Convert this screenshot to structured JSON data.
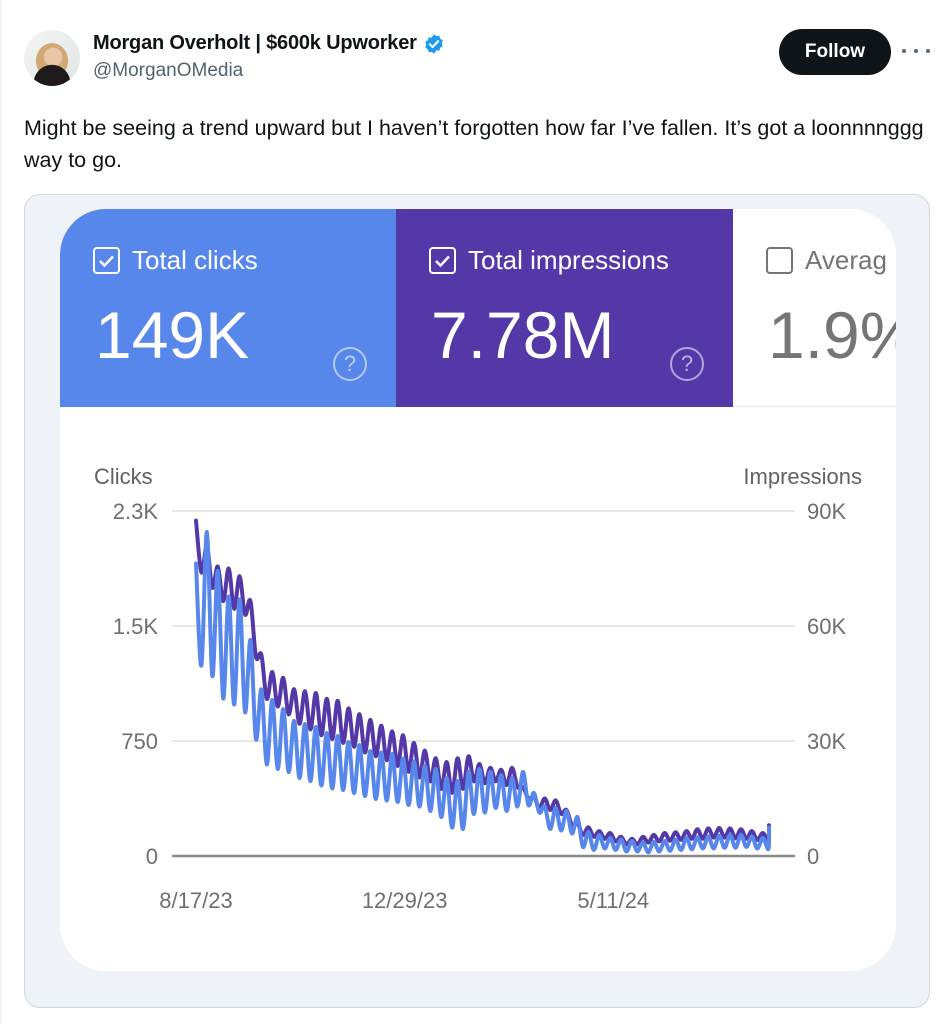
{
  "tweet": {
    "author": {
      "display_name": "Morgan Overholt | $600k Upworker",
      "handle": "@MorganOMedia",
      "verified": true,
      "verified_badge_color": "#1d9bf0"
    },
    "follow_label": "Follow",
    "more_icon": "more-horizontal-icon",
    "text": "Might be seeing a trend upward but I haven’t forgotten how far I’ve fallen. It’s got a loonnnnggg way to go."
  },
  "metrics": [
    {
      "label": "Total clicks",
      "value": "149K",
      "checked": true,
      "color": "#5787ea",
      "help_icon": "?"
    },
    {
      "label": "Total impressions",
      "value": "7.78M",
      "checked": true,
      "color": "#5538a8",
      "help_icon": "?"
    },
    {
      "label": "Averag",
      "value": "1.9%",
      "checked": false,
      "color": "#757575"
    }
  ],
  "chart_data": {
    "type": "line",
    "title": "",
    "y_left_label": "Clicks",
    "y_right_label": "Impressions",
    "y_left_ticks": [
      "2.3K",
      "1.5K",
      "750",
      "0"
    ],
    "y_right_ticks": [
      "90K",
      "60K",
      "30K",
      "0"
    ],
    "y_left_range": [
      0,
      2300
    ],
    "y_right_range": [
      0,
      90000
    ],
    "x_ticks": [
      {
        "label": "8/17/23",
        "day": 0
      },
      {
        "label": "12/29/23",
        "day": 134
      },
      {
        "label": "5/11/24",
        "day": 268
      }
    ],
    "x_range_days": [
      0,
      368
    ],
    "sample_step_days": 3.5,
    "grid": true,
    "legend": "none",
    "series": [
      {
        "name": "Clicks",
        "axis": "left",
        "color": "#5787ea",
        "values": [
          1950,
          1270,
          2160,
          1200,
          1900,
          1050,
          1730,
          1010,
          1710,
          960,
          1440,
          780,
          1110,
          610,
          1040,
          580,
          980,
          560,
          900,
          520,
          880,
          500,
          860,
          470,
          820,
          450,
          800,
          440,
          760,
          420,
          740,
          400,
          700,
          380,
          690,
          370,
          680,
          360,
          650,
          340,
          630,
          330,
          600,
          300,
          580,
          260,
          520,
          190,
          500,
          180,
          560,
          280,
          580,
          290,
          560,
          320,
          540,
          300,
          520,
          330,
          560,
          340,
          420,
          290,
          330,
          180,
          320,
          170,
          300,
          150,
          260,
          60,
          160,
          40,
          140,
          50,
          120,
          40,
          110,
          30,
          100,
          30,
          90,
          25,
          95,
          30,
          100,
          35,
          110,
          40,
          120,
          45,
          125,
          50,
          130,
          50,
          135,
          55,
          140,
          55,
          140,
          60,
          130,
          50,
          120,
          45,
          140,
          190
        ]
      },
      {
        "name": "Impressions",
        "axis": "right",
        "color": "#5538a8",
        "values": [
          87500,
          74000,
          81000,
          70000,
          75500,
          66500,
          75000,
          64500,
          73000,
          63000,
          66500,
          52000,
          52500,
          41000,
          48000,
          39000,
          46500,
          37000,
          43500,
          34500,
          43000,
          33000,
          42500,
          31500,
          41000,
          30500,
          40500,
          29500,
          38500,
          28500,
          37000,
          27000,
          35500,
          26000,
          34000,
          25000,
          32500,
          23500,
          31500,
          22000,
          29500,
          20500,
          27500,
          19500,
          25500,
          17500,
          24500,
          16500,
          25500,
          17500,
          26000,
          19500,
          24000,
          19000,
          23000,
          19500,
          22500,
          18500,
          23000,
          18000,
          18000,
          15000,
          15500,
          12500,
          15000,
          12000,
          14500,
          11000,
          12000,
          8000,
          8500,
          5500,
          7500,
          5000,
          6500,
          4500,
          6000,
          3800,
          5000,
          3000,
          4500,
          3000,
          5000,
          3500,
          5500,
          3800,
          6000,
          4000,
          6200,
          4200,
          6500,
          4500,
          7000,
          4500,
          7200,
          4800,
          7300,
          4800,
          7200,
          4600,
          7000,
          4500,
          6500,
          4200,
          6000,
          4000,
          6500,
          8000
        ]
      }
    ]
  }
}
